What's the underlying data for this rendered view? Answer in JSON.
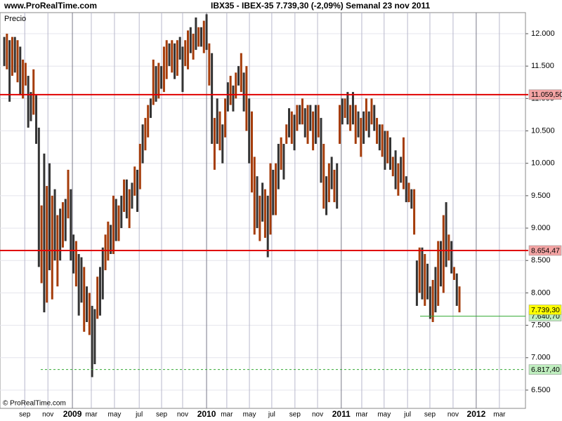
{
  "chart_data": {
    "type": "bar-range",
    "site": "www.ProRealTime.com",
    "title": "IBX35 - IBEX-35    7.739,30 (-2,09%)    Semanal  23 nov 2011",
    "y_label": "Precio",
    "copyright": "© ProRealTime.com",
    "up_color": "#a53c0a",
    "down_color": "#333333",
    "low": [
      11500,
      11450,
      10950,
      11350,
      11400,
      11250,
      11050,
      11000,
      11200,
      10550,
      10650,
      10750,
      10300,
      8400,
      8150,
      7700,
      7850,
      8350,
      7900,
      8500,
      8100,
      8500,
      8700,
      8800,
      9150,
      8500,
      8300,
      8100,
      7650,
      7850,
      7400,
      7550,
      7350,
      6700,
      6900,
      7600,
      7650,
      7900,
      8350,
      8500,
      8600,
      8600,
      8800,
      8800,
      9000,
      9250,
      9150,
      9000,
      9300,
      9500,
      9250,
      9600,
      10000,
      10200,
      10400,
      10700,
      10900,
      10950,
      11000,
      11150,
      11100,
      11300,
      11500,
      11400,
      11300,
      11350,
      11600,
      11100,
      11500,
      11450,
      11700,
      11600,
      11750,
      11800,
      11800,
      11700,
      11750,
      11200,
      10300,
      9900,
      10300,
      10200,
      10000,
      10400,
      10800,
      10900,
      10800,
      11000,
      11200,
      11100,
      10800,
      10500,
      10000,
      9550,
      8900,
      9000,
      8800,
      9100,
      8850,
      8550,
      8900,
      9200,
      9200,
      9600,
      9900,
      9750,
      10300,
      10400,
      10300,
      10200,
      10500,
      10600,
      10600,
      10400,
      10300,
      10500,
      10200,
      10300,
      10400,
      9700,
      9300,
      9200,
      9400,
      9600,
      9400,
      9300,
      10300,
      10600,
      10700,
      10600,
      10500,
      10600,
      10300,
      10400,
      10100,
      10300,
      10500,
      10400,
      10600,
      10500,
      10300,
      10200,
      10100,
      9900,
      10000,
      9900,
      9800,
      9600,
      9500,
      9700,
      9600,
      9400,
      9400,
      9300,
      8900,
      7800,
      8000,
      7900,
      7800,
      7900,
      7600,
      7550,
      7700,
      7800,
      8100,
      8000,
      8400,
      8500,
      8300,
      8200,
      7800,
      7700
    ],
    "high": [
      11950,
      12000,
      11900,
      11950,
      11950,
      11900,
      11800,
      11600,
      11550,
      11350,
      11100,
      11450,
      11050,
      10550,
      9350,
      10150,
      9650,
      10000,
      9500,
      9600,
      9200,
      9300,
      9400,
      9450,
      9900,
      9600,
      8900,
      8800,
      8600,
      8550,
      8400,
      8100,
      8000,
      7800,
      7750,
      8250,
      8400,
      8700,
      8900,
      9100,
      9050,
      9500,
      9450,
      9350,
      9500,
      9750,
      9750,
      9600,
      9700,
      9950,
      9900,
      10300,
      10600,
      10700,
      10900,
      11000,
      11600,
      11500,
      11550,
      11500,
      11800,
      11900,
      11850,
      11900,
      11850,
      11900,
      11950,
      11800,
      11900,
      12050,
      12100,
      12000,
      12250,
      12100,
      12100,
      12200,
      12300,
      11850,
      11700,
      10700,
      11000,
      10800,
      10600,
      11000,
      11250,
      11350,
      11200,
      11400,
      11500,
      11700,
      11400,
      11500,
      11000,
      10800,
      10100,
      9800,
      9500,
      9700,
      9600,
      9500,
      10000,
      9900,
      10000,
      10300,
      10400,
      10300,
      10600,
      10850,
      10800,
      10750,
      10900,
      10900,
      11000,
      10850,
      10900,
      10900,
      10800,
      10900,
      10900,
      10700,
      10300,
      9800,
      10000,
      10100,
      9900,
      10000,
      10900,
      11000,
      11000,
      11100,
      10900,
      11100,
      10900,
      10800,
      10700,
      10800,
      11000,
      10800,
      11000,
      10900,
      10700,
      10600,
      10600,
      10500,
      10500,
      10400,
      10100,
      10200,
      10000,
      10100,
      10400,
      9800,
      9700,
      9600,
      9600,
      8500,
      8700,
      8700,
      8600,
      8450,
      8100,
      8200,
      8400,
      8800,
      8800,
      9200,
      9400,
      8900,
      8800,
      8400,
      8300,
      8100
    ],
    "direction": [
      "down",
      "up",
      "down",
      "up",
      "down",
      "up",
      "down",
      "up",
      "up",
      "down",
      "down",
      "up",
      "down",
      "down",
      "up",
      "down",
      "up",
      "down",
      "up",
      "down",
      "up",
      "down",
      "up",
      "down",
      "up",
      "down",
      "down",
      "up",
      "down",
      "down",
      "up",
      "down",
      "up",
      "down",
      "down",
      "up",
      "down",
      "down",
      "up",
      "up",
      "down",
      "up",
      "down",
      "up",
      "down",
      "up",
      "down",
      "up",
      "down",
      "up",
      "down",
      "up",
      "down",
      "up",
      "up",
      "down",
      "up",
      "down",
      "up",
      "down",
      "up",
      "up",
      "down",
      "up",
      "down",
      "up",
      "down",
      "down",
      "up",
      "up",
      "down",
      "up",
      "down",
      "up",
      "down",
      "up",
      "down",
      "up",
      "down",
      "up",
      "down",
      "up",
      "down",
      "up",
      "down",
      "up",
      "down",
      "up",
      "down",
      "up",
      "down",
      "up",
      "down",
      "up",
      "up",
      "down",
      "up",
      "down",
      "up",
      "down",
      "up",
      "down",
      "up",
      "down",
      "up",
      "down",
      "up",
      "down",
      "up",
      "down",
      "up",
      "down",
      "up",
      "down",
      "up",
      "down",
      "up",
      "down",
      "up",
      "down",
      "up",
      "down",
      "up",
      "down",
      "up",
      "down",
      "up",
      "down",
      "up",
      "down",
      "up",
      "down",
      "up",
      "down",
      "up",
      "down",
      "up",
      "down",
      "up",
      "down",
      "up",
      "down",
      "up",
      "down",
      "up",
      "down",
      "up",
      "down",
      "up",
      "down",
      "up",
      "down",
      "up",
      "down",
      "up",
      "down",
      "up",
      "down",
      "up",
      "down",
      "down",
      "up",
      "down",
      "up",
      "down",
      "up",
      "down",
      "up",
      "down",
      "up",
      "down",
      "up"
    ],
    "xlim": [
      -1.6,
      195.8
    ],
    "xticks": [
      {
        "value": 7.7,
        "label": "sep"
      },
      {
        "value": 16.4,
        "label": "nov"
      },
      {
        "value": 25.6,
        "label": "2009"
      },
      {
        "value": 32.7,
        "label": "mar"
      },
      {
        "value": 41.4,
        "label": "may"
      },
      {
        "value": 50.7,
        "label": "jul"
      },
      {
        "value": 59.1,
        "label": "sep"
      },
      {
        "value": 67,
        "label": "nov"
      },
      {
        "value": 76,
        "label": "2010"
      },
      {
        "value": 83.6,
        "label": "mar"
      },
      {
        "value": 92.1,
        "label": "may"
      },
      {
        "value": 100.5,
        "label": "jul"
      },
      {
        "value": 109.2,
        "label": "sep"
      },
      {
        "value": 117.7,
        "label": "nov"
      },
      {
        "value": 126.6,
        "label": "2011"
      },
      {
        "value": 134.3,
        "label": "mar"
      },
      {
        "value": 142.7,
        "label": "may"
      },
      {
        "value": 151.5,
        "label": "jul"
      },
      {
        "value": 159.9,
        "label": "sep"
      },
      {
        "value": 168.6,
        "label": "nov"
      },
      {
        "value": 177.3,
        "label": "2012"
      },
      {
        "value": 186,
        "label": "mar"
      }
    ],
    "ylim": [
      6218,
      12325
    ],
    "yticks": [
      {
        "value": 6500,
        "label": "6.500"
      },
      {
        "value": 7000,
        "label": "7.000"
      },
      {
        "value": 7500,
        "label": "7.500"
      },
      {
        "value": 8000,
        "label": "8.000"
      },
      {
        "value": 8500,
        "label": "8.500"
      },
      {
        "value": 9000,
        "label": "9.000"
      },
      {
        "value": 9500,
        "label": "9.500"
      },
      {
        "value": 10000,
        "label": "10.000"
      },
      {
        "value": 10500,
        "label": "10.500"
      },
      {
        "value": 11000,
        "label": "11.000"
      },
      {
        "value": 11500,
        "label": "11.500"
      },
      {
        "value": 12000,
        "label": "12.000"
      }
    ],
    "levels": [
      {
        "value": 11059.5,
        "label": "11.059,50",
        "color": "#e00000",
        "badge": "#f4a4a4",
        "style": "solid"
      },
      {
        "value": 8654.47,
        "label": "8.654,47",
        "color": "#e00000",
        "badge": "#f4a4a4",
        "style": "solid"
      },
      {
        "value": 7640.7,
        "label": "7.640,70",
        "color": "#33aa33",
        "badge": "#bfeebf",
        "style": "short"
      },
      {
        "value": 6817.4,
        "label": "6.817,40",
        "color": "#33aa33",
        "badge": "#bfeebf",
        "style": "dashed"
      },
      {
        "value": 7739.3,
        "label": "7.739,30",
        "color": "#000000",
        "badge": "#ffff00",
        "style": "badge"
      }
    ]
  }
}
